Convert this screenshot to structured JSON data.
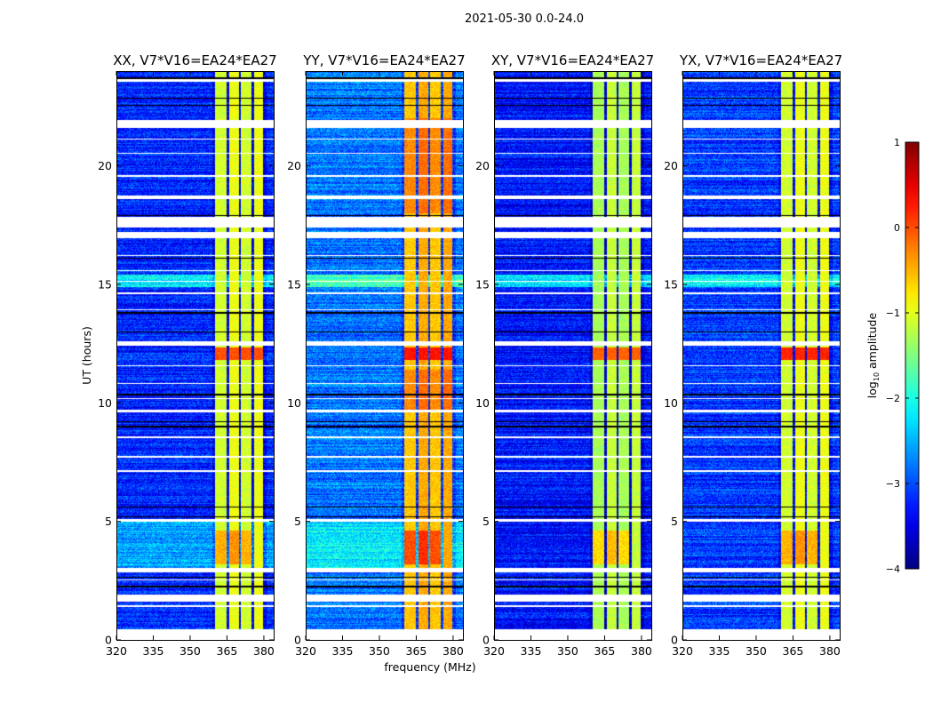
{
  "figure": {
    "suptitle": "2021-05-30 0.0-24.0"
  },
  "chart_data": {
    "type": "heatmap",
    "title": "2021-05-30 0.0-24.0",
    "xlabel": "frequency (MHz)",
    "ylabel": "UT (hours)",
    "xlim": [
      320,
      384
    ],
    "ylim": [
      0,
      24
    ],
    "xticks": [
      320,
      335,
      350,
      365,
      380
    ],
    "yticks": [
      0,
      5,
      10,
      15,
      20
    ],
    "data_time_range": [
      0.45,
      24
    ],
    "bright_subbands_mhz": [
      [
        360,
        364.7
      ],
      [
        365.8,
        369.8
      ],
      [
        370.5,
        374.9
      ],
      [
        375.9,
        379.5
      ]
    ],
    "flagged_hours": [
      [
        23.55,
        23.65
      ],
      [
        21.6,
        21.95
      ],
      [
        21.1,
        21.15
      ],
      [
        20.5,
        20.55
      ],
      [
        19.55,
        19.6
      ],
      [
        18.6,
        18.75
      ],
      [
        17.4,
        17.85
      ],
      [
        16.95,
        17.2
      ],
      [
        16.2,
        16.25
      ],
      [
        15.55,
        15.6
      ],
      [
        15.1,
        15.15
      ],
      [
        14.6,
        14.65
      ],
      [
        13.9,
        13.95
      ],
      [
        12.4,
        12.6
      ],
      [
        11.55,
        11.6
      ],
      [
        10.8,
        10.85
      ],
      [
        10.15,
        10.2
      ],
      [
        9.6,
        9.7
      ],
      [
        8.5,
        8.6
      ],
      [
        7.7,
        7.75
      ],
      [
        7.1,
        7.15
      ],
      [
        5.0,
        5.1
      ],
      [
        2.85,
        3.05
      ],
      [
        2.5,
        2.55
      ],
      [
        1.6,
        1.9
      ],
      [
        1.4,
        1.45
      ]
    ],
    "dropout_hours": [
      23.7,
      22.85,
      22.55,
      17.9,
      16.1,
      13.8,
      13.0,
      10.35,
      9.2,
      9.0,
      5.6,
      5.2,
      2.65,
      2.25
    ],
    "panels": [
      {
        "title": "XX, V7*V16=EA24*EA27",
        "background_log10": -3.2,
        "band_log10": -1.1,
        "peak_log10": 0.0
      },
      {
        "title": "YY, V7*V16=EA24*EA27",
        "background_log10": -2.8,
        "band_log10": -0.6,
        "peak_log10": 0.3
      },
      {
        "title": "XY, V7*V16=EA24*EA27",
        "background_log10": -3.3,
        "band_log10": -1.3,
        "peak_log10": -0.1
      },
      {
        "title": "YX, V7*V16=EA24*EA27",
        "background_log10": -3.1,
        "band_log10": -1.1,
        "peak_log10": 0.2
      }
    ],
    "colorbar": {
      "label": "log10 amplitude",
      "label_main": "log",
      "label_sub": "10",
      "label_rest": " amplitude",
      "range": [
        -4,
        1
      ],
      "ticks": [
        -4,
        -3,
        -2,
        -1,
        0,
        1
      ],
      "tick_labels": [
        "−4",
        "−3",
        "−2",
        "−1",
        "0",
        "1"
      ],
      "colormap": "jet"
    }
  }
}
